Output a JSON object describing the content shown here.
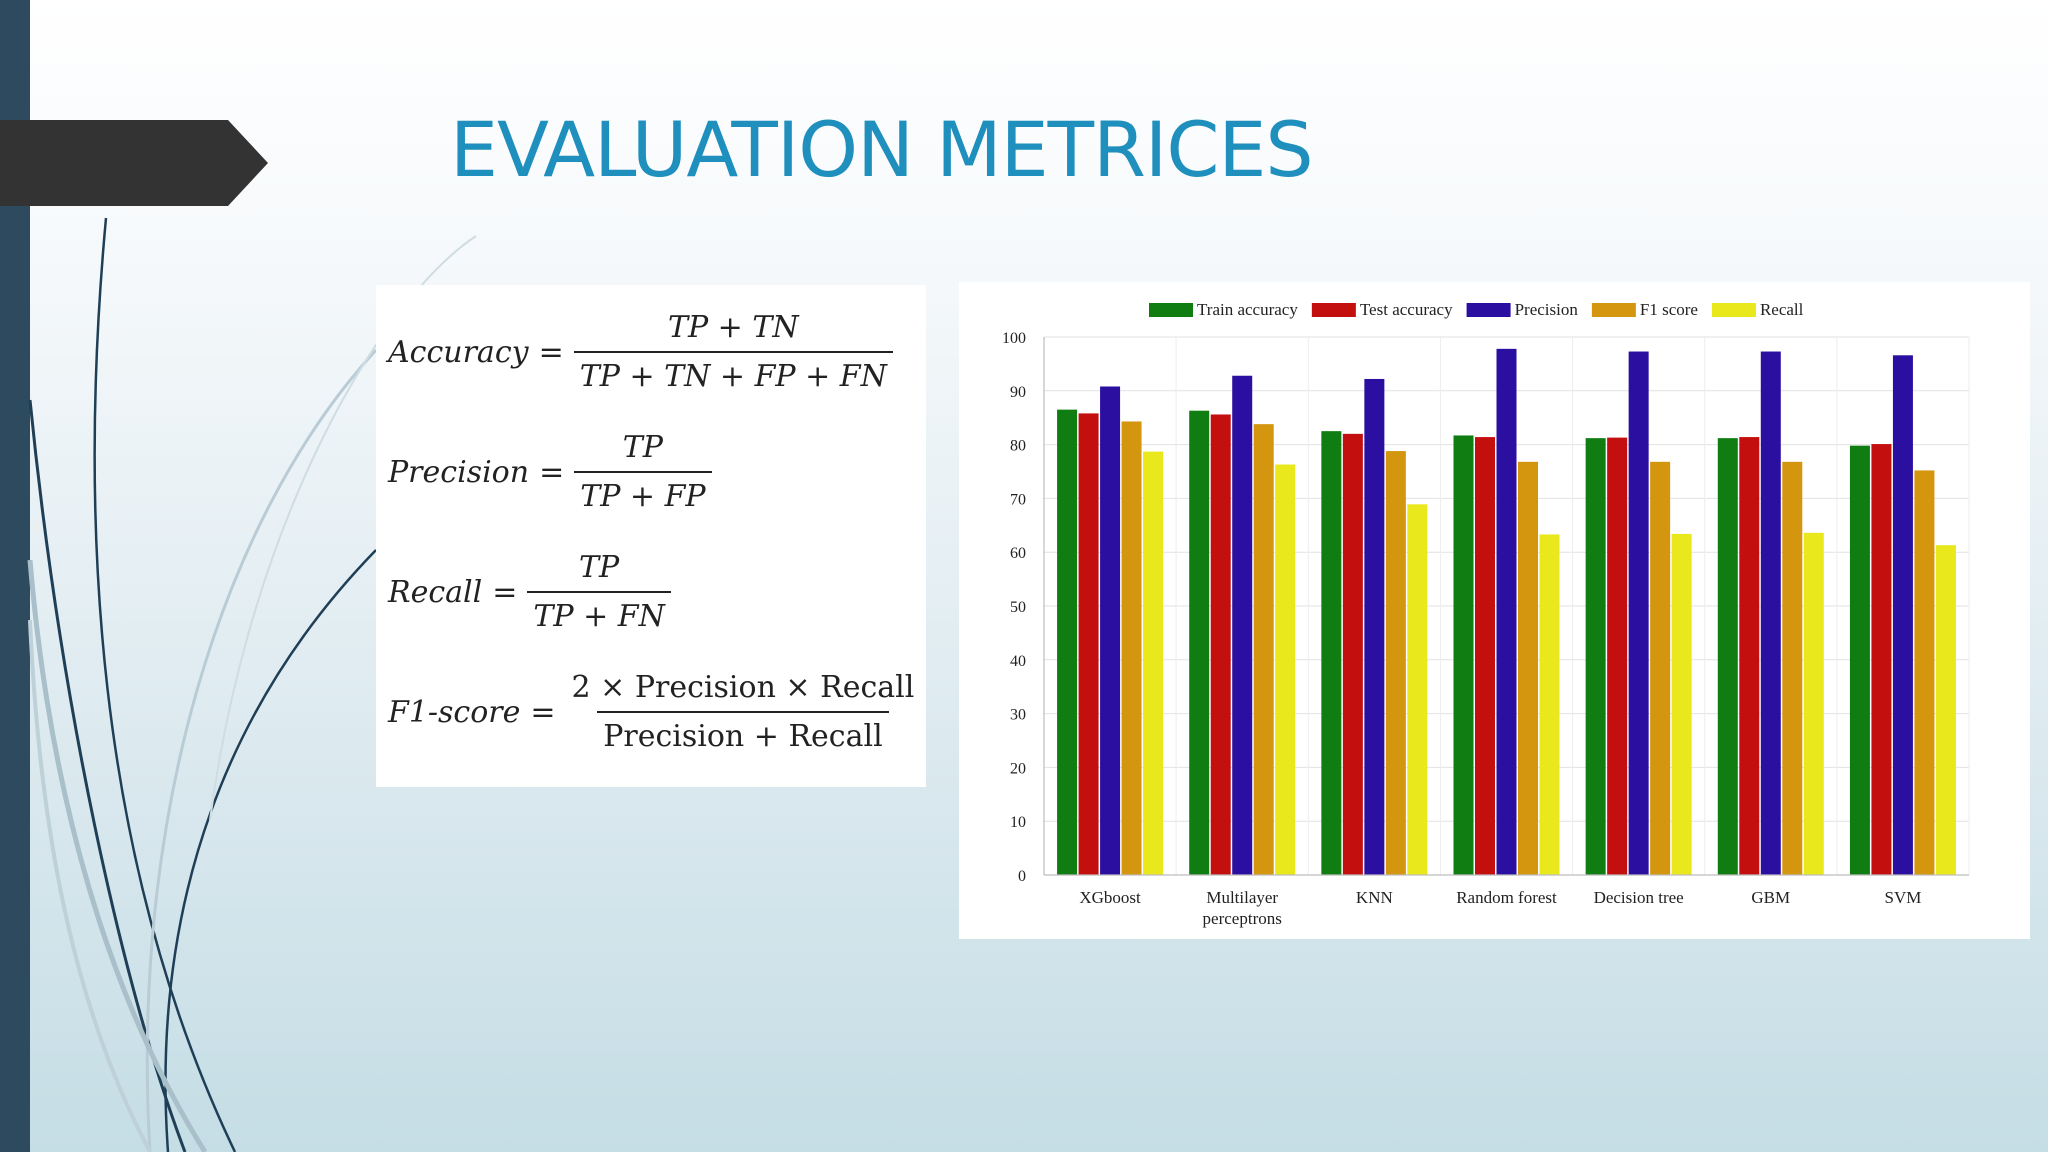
{
  "slide": {
    "title": "EVALUATION METRICES"
  },
  "formulas": {
    "accuracy": {
      "name": "Accuracy",
      "numerator": "TP + TN",
      "denominator": "TP + TN + FP + FN"
    },
    "precision": {
      "name": "Precision",
      "numerator": "TP",
      "denominator": "TP + FP"
    },
    "recall": {
      "name": "Recall",
      "numerator": "TP",
      "denominator": "TP + FN"
    },
    "f1": {
      "name": "F1-score",
      "numerator": "2 × Precision × Recall",
      "denominator": "Precision + Recall"
    },
    "equals": "="
  },
  "chart_data": {
    "type": "bar",
    "title": "",
    "xlabel": "",
    "ylabel": "",
    "ylim": [
      0,
      100
    ],
    "yticks": [
      0,
      10,
      20,
      30,
      40,
      50,
      60,
      70,
      80,
      90,
      100
    ],
    "grid": true,
    "legend_position": "top",
    "categories": [
      [
        "XGboost"
      ],
      [
        "Multilayer",
        "perceptrons"
      ],
      [
        "KNN"
      ],
      [
        "Random forest"
      ],
      [
        "Decision tree"
      ],
      [
        "GBM"
      ],
      [
        "SVM"
      ]
    ],
    "series": [
      {
        "name": "Train accuracy",
        "color": "#0f7d12",
        "values": [
          86.5,
          86.3,
          82.5,
          81.7,
          81.2,
          81.2,
          79.8
        ]
      },
      {
        "name": "Test accuracy",
        "color": "#c40f0f",
        "values": [
          85.8,
          85.6,
          82.0,
          81.4,
          81.3,
          81.4,
          80.1
        ]
      },
      {
        "name": "Precision",
        "color": "#2a0fa0",
        "values": [
          90.8,
          92.8,
          92.2,
          97.8,
          97.3,
          97.3,
          96.6
        ]
      },
      {
        "name": "F1 score",
        "color": "#d4960f",
        "values": [
          84.3,
          83.8,
          78.8,
          76.8,
          76.8,
          76.8,
          75.2
        ]
      },
      {
        "name": "Recall",
        "color": "#e8e81c",
        "values": [
          78.7,
          76.3,
          68.9,
          63.3,
          63.4,
          63.6,
          61.3
        ]
      }
    ]
  },
  "colors": {
    "title": "#1f8fbd",
    "left_bar": "#2d4a5f",
    "arrow_tab": "#333333"
  }
}
